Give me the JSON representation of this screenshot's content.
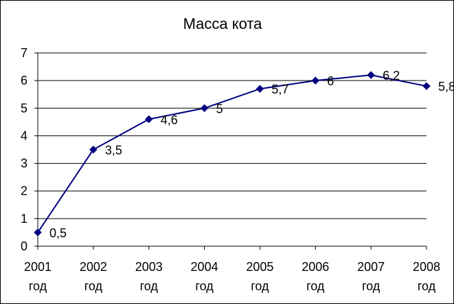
{
  "chart_data": {
    "type": "line",
    "title": "Масса кота",
    "categories": [
      [
        "2001",
        "год"
      ],
      [
        "2002",
        "год"
      ],
      [
        "2003",
        "год"
      ],
      [
        "2004",
        "год"
      ],
      [
        "2005",
        "год"
      ],
      [
        "2006",
        "год"
      ],
      [
        "2007",
        "год"
      ],
      [
        "2008",
        "год"
      ]
    ],
    "series": [
      {
        "values": [
          0.5,
          3.5,
          4.6,
          5,
          5.7,
          6,
          6.2,
          5.8
        ],
        "labels": [
          "0,5",
          "3,5",
          "4,6",
          "5",
          "5,7",
          "6",
          "6,2",
          "5,8"
        ],
        "color": "#000080",
        "marker": "diamond"
      }
    ],
    "ylim": [
      0,
      7
    ],
    "yticks": [
      0,
      1,
      2,
      3,
      4,
      5,
      6,
      7
    ],
    "xlabel": "",
    "ylabel": "",
    "grid": true,
    "legend": "none"
  }
}
